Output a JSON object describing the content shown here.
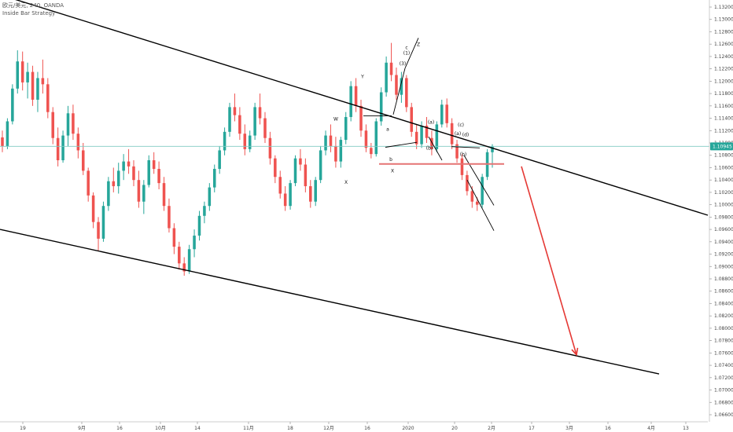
{
  "header": {
    "symbol_line": "欧元/美元, 240, OANDA",
    "strategy": "Inside Bar Strategy"
  },
  "colors": {
    "up": "#26a69a",
    "down": "#ef5350",
    "trendline": "#000000",
    "arrow": "#e53935",
    "support": "#e57373",
    "current_price_line": "#80cbc4",
    "price_tag_bg": "#26a69a"
  },
  "chart_data": {
    "type": "candlestick",
    "title": "",
    "xlabel": "",
    "ylabel": "",
    "ylim": [
      1.064,
      1.134
    ],
    "y_ticks": [
      "1.13200",
      "1.13000",
      "1.12800",
      "1.12600",
      "1.12400",
      "1.12200",
      "1.12000",
      "1.11800",
      "1.11600",
      "1.11400",
      "1.11200",
      "1.11000",
      "1.10800",
      "1.10600",
      "1.10400",
      "1.10200",
      "1.10000",
      "1.09800",
      "1.09600",
      "1.09400",
      "1.09200",
      "1.09000",
      "1.08800",
      "1.08600",
      "1.08400",
      "1.08200",
      "1.08000",
      "1.07800",
      "1.07600",
      "1.07400",
      "1.07200",
      "1.07000",
      "1.06800",
      "1.06600"
    ],
    "x_ticks": [
      "19",
      "9月",
      "16",
      "10月",
      "14",
      "11月",
      "18",
      "12月",
      "16",
      "2020",
      "20",
      "2月",
      "17",
      "3月",
      "16",
      "4月",
      "13"
    ],
    "current_price": 1.10945,
    "current_price_label": "1.10945",
    "trendlines": [
      {
        "name": "upper-channel",
        "p1": [
          0,
          1.134
        ],
        "p2": [
          900,
          1.0983
        ]
      },
      {
        "name": "lower-channel",
        "p1": [
          0,
          1.096
        ],
        "p2": [
          838,
          1.0726
        ]
      },
      {
        "name": "wave-line-1",
        "p1": [
          500,
          1.1146
        ],
        "p2": [
          515,
          1.1221
        ]
      },
      {
        "name": "wave-line-2",
        "p1": [
          515,
          1.1221
        ],
        "p2": [
          532,
          1.127
        ]
      },
      {
        "name": "wave-line-3",
        "p1": [
          490,
          1.1093
        ],
        "p2": [
          530,
          1.1101
        ]
      },
      {
        "name": "wave-line-4",
        "p1": [
          545,
          1.111
        ],
        "p2": [
          562,
          1.1072
        ]
      },
      {
        "name": "wave-line-5",
        "p1": [
          574,
          1.1094
        ],
        "p2": [
          610,
          1.1092
        ]
      },
      {
        "name": "wave-line-6",
        "p1": [
          590,
          1.108
        ],
        "p2": [
          628,
          1.0999
        ]
      },
      {
        "name": "wave-line-7",
        "p1": [
          594,
          1.104
        ],
        "p2": [
          628,
          1.0958
        ]
      },
      {
        "name": "wave-line-8",
        "p1": [
          462,
          1.1144
        ],
        "p2": [
          498,
          1.1144
        ]
      }
    ],
    "support_line": {
      "x1": 482,
      "x2": 641,
      "y": 1.1066
    },
    "forecast_arrow": {
      "from": [
        663,
        1.1062
      ],
      "to": [
        733,
        1.0757
      ]
    },
    "wave_labels": [
      {
        "text": "c",
        "x": 517,
        "y": 1.1252
      },
      {
        "text": "(1)",
        "x": 517,
        "y": 1.1243
      },
      {
        "text": "(3)",
        "x": 512,
        "y": 1.1226
      },
      {
        "text": "Z",
        "x": 532,
        "y": 1.1257
      },
      {
        "text": "Y",
        "x": 461,
        "y": 1.1205
      },
      {
        "text": "W",
        "x": 427,
        "y": 1.1136
      },
      {
        "text": "X",
        "x": 440,
        "y": 1.1034
      },
      {
        "text": "a",
        "x": 493,
        "y": 1.112
      },
      {
        "text": "b",
        "x": 497,
        "y": 1.1071
      },
      {
        "text": "X",
        "x": 499,
        "y": 1.1052
      },
      {
        "text": "(a)",
        "x": 548,
        "y": 1.1131
      },
      {
        "text": "(b)",
        "x": 546,
        "y": 1.1089
      },
      {
        "text": "(c)",
        "x": 586,
        "y": 1.1127
      },
      {
        "text": "(a)",
        "x": 582,
        "y": 1.1113
      },
      {
        "text": "(b)",
        "x": 589,
        "y": 1.1079
      },
      {
        "text": "(d)",
        "x": 592,
        "y": 1.1111
      }
    ],
    "series": [
      {
        "name": "",
        "candles": [
          [
            1.1109,
            1.112,
            1.1085,
            1.1095
          ],
          [
            1.1095,
            1.114,
            1.109,
            1.1135
          ],
          [
            1.1135,
            1.1195,
            1.113,
            1.1188
          ],
          [
            1.1188,
            1.125,
            1.118,
            1.1232
          ],
          [
            1.1232,
            1.1248,
            1.1185,
            1.1198
          ],
          [
            1.1198,
            1.123,
            1.1172,
            1.1215
          ],
          [
            1.1215,
            1.1225,
            1.116,
            1.117
          ],
          [
            1.117,
            1.1215,
            1.115,
            1.1205
          ],
          [
            1.1205,
            1.1235,
            1.118,
            1.1195
          ],
          [
            1.1195,
            1.1205,
            1.114,
            1.115
          ],
          [
            1.115,
            1.1158,
            1.1098,
            1.1108
          ],
          [
            1.1108,
            1.1125,
            1.1062,
            1.1072
          ],
          [
            1.1072,
            1.112,
            1.1068,
            1.1112
          ],
          [
            1.1112,
            1.116,
            1.1095,
            1.1148
          ],
          [
            1.1148,
            1.1162,
            1.1105,
            1.1115
          ],
          [
            1.1115,
            1.1125,
            1.1075,
            1.1088
          ],
          [
            1.1088,
            1.11,
            1.1048,
            1.1055
          ],
          [
            1.1055,
            1.106,
            1.1005,
            1.1015
          ],
          [
            1.1015,
            1.102,
            1.0962,
            1.0972
          ],
          [
            1.0972,
            1.098,
            1.0925,
            1.0945
          ],
          [
            1.0945,
            1.1005,
            1.094,
            1.0998
          ],
          [
            1.0998,
            1.1045,
            1.099,
            1.1038
          ],
          [
            1.1038,
            1.106,
            1.102,
            1.103
          ],
          [
            1.103,
            1.1068,
            1.1018,
            1.1055
          ],
          [
            1.1055,
            1.1082,
            1.104,
            1.107
          ],
          [
            1.107,
            1.109,
            1.105,
            1.1062
          ],
          [
            1.1062,
            1.1072,
            1.103,
            1.104
          ],
          [
            1.104,
            1.1055,
            1.0995,
            1.1005
          ],
          [
            1.1005,
            1.104,
            1.0985,
            1.1032
          ],
          [
            1.1032,
            1.108,
            1.1028,
            1.1072
          ],
          [
            1.1072,
            1.1085,
            1.105,
            1.1058
          ],
          [
            1.1058,
            1.107,
            1.1025,
            1.1035
          ],
          [
            1.1035,
            1.1045,
            1.099,
            1.0998
          ],
          [
            1.0998,
            1.101,
            1.0955,
            1.0962
          ],
          [
            1.0962,
            1.097,
            1.092,
            1.0932
          ],
          [
            1.0932,
            1.094,
            1.0895,
            1.0905
          ],
          [
            1.0905,
            1.0915,
            1.0885,
            1.0892
          ],
          [
            1.0892,
            1.0935,
            1.0888,
            1.0928
          ],
          [
            1.0928,
            1.096,
            1.0915,
            1.095
          ],
          [
            1.095,
            1.099,
            1.0942,
            1.0982
          ],
          [
            1.0982,
            1.1005,
            1.097,
            1.0998
          ],
          [
            1.0998,
            1.1035,
            1.099,
            1.1028
          ],
          [
            1.1028,
            1.1065,
            1.102,
            1.1058
          ],
          [
            1.1058,
            1.1095,
            1.105,
            1.1088
          ],
          [
            1.1088,
            1.1125,
            1.108,
            1.1118
          ],
          [
            1.1118,
            1.1165,
            1.111,
            1.1158
          ],
          [
            1.1158,
            1.118,
            1.1135,
            1.1145
          ],
          [
            1.1145,
            1.1158,
            1.1105,
            1.1115
          ],
          [
            1.1115,
            1.113,
            1.108,
            1.109
          ],
          [
            1.109,
            1.112,
            1.1085,
            1.1112
          ],
          [
            1.1112,
            1.1165,
            1.1105,
            1.1158
          ],
          [
            1.1158,
            1.118,
            1.113,
            1.114
          ],
          [
            1.114,
            1.115,
            1.11,
            1.1108
          ],
          [
            1.1108,
            1.1118,
            1.1065,
            1.1075
          ],
          [
            1.1075,
            1.108,
            1.1035,
            1.1045
          ],
          [
            1.1045,
            1.1055,
            1.101,
            1.1018
          ],
          [
            1.1018,
            1.103,
            1.099,
            1.0998
          ],
          [
            1.0998,
            1.104,
            1.0992,
            1.1035
          ],
          [
            1.1035,
            1.108,
            1.103,
            1.1075
          ],
          [
            1.1075,
            1.109,
            1.1055,
            1.1065
          ],
          [
            1.1065,
            1.1075,
            1.102,
            1.103
          ],
          [
            1.103,
            1.104,
            1.0995,
            1.1005
          ],
          [
            1.1005,
            1.1045,
            1.0998,
            1.104
          ],
          [
            1.104,
            1.1095,
            1.1035,
            1.1088
          ],
          [
            1.1088,
            1.112,
            1.108,
            1.1112
          ],
          [
            1.1112,
            1.113,
            1.1085,
            1.1095
          ],
          [
            1.1095,
            1.111,
            1.106,
            1.107
          ],
          [
            1.107,
            1.111,
            1.106,
            1.1105
          ],
          [
            1.1105,
            1.115,
            1.1098,
            1.1142
          ],
          [
            1.1142,
            1.12,
            1.1135,
            1.1192
          ],
          [
            1.1192,
            1.1205,
            1.115,
            1.116
          ],
          [
            1.116,
            1.117,
            1.111,
            1.112
          ],
          [
            1.112,
            1.113,
            1.1085,
            1.1092
          ],
          [
            1.1092,
            1.11,
            1.1075,
            1.1082
          ],
          [
            1.1082,
            1.114,
            1.1078,
            1.1135
          ],
          [
            1.1135,
            1.119,
            1.1128,
            1.1182
          ],
          [
            1.1182,
            1.124,
            1.1175,
            1.123
          ],
          [
            1.123,
            1.1262,
            1.12,
            1.121
          ],
          [
            1.121,
            1.1222,
            1.117,
            1.1178
          ],
          [
            1.1178,
            1.1215,
            1.1165,
            1.1205
          ],
          [
            1.1205,
            1.121,
            1.115,
            1.1158
          ],
          [
            1.1158,
            1.1165,
            1.111,
            1.1118
          ],
          [
            1.1118,
            1.113,
            1.109,
            1.1098
          ],
          [
            1.1098,
            1.1135,
            1.1092,
            1.1128
          ],
          [
            1.1128,
            1.1142,
            1.11,
            1.1108
          ],
          [
            1.1108,
            1.112,
            1.108,
            1.109
          ],
          [
            1.109,
            1.1135,
            1.1085,
            1.113
          ],
          [
            1.113,
            1.117,
            1.1125,
            1.1162
          ],
          [
            1.1162,
            1.1172,
            1.1125,
            1.1132
          ],
          [
            1.1132,
            1.114,
            1.109,
            1.1098
          ],
          [
            1.1098,
            1.1105,
            1.1068,
            1.1075
          ],
          [
            1.1075,
            1.1082,
            1.104,
            1.1048
          ],
          [
            1.1048,
            1.1055,
            1.1015,
            1.1022
          ],
          [
            1.1022,
            1.103,
            1.0995,
            1.1005
          ],
          [
            1.1005,
            1.1012,
            1.099,
            1.1
          ],
          [
            1.1,
            1.105,
            1.0995,
            1.1045
          ],
          [
            1.1045,
            1.109,
            1.104,
            1.1085
          ],
          [
            1.1085,
            1.1098,
            1.106,
            1.1094
          ]
        ]
      }
    ]
  }
}
